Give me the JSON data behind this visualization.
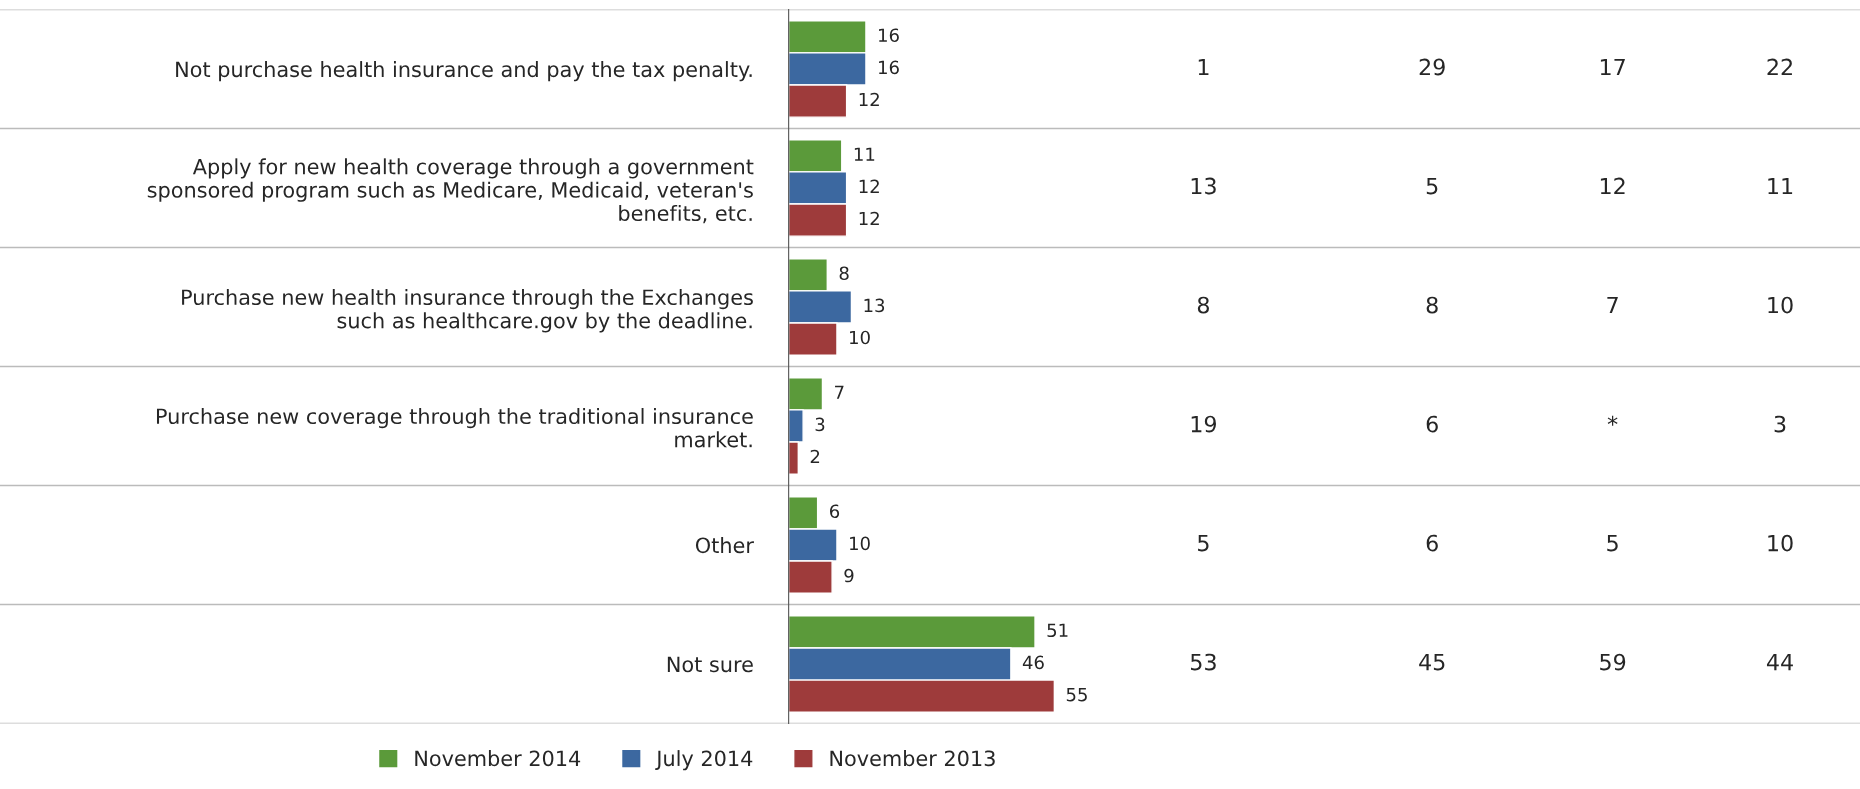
{
  "chart_data": [
    {
      "type": "bar",
      "orientation": "horizontal",
      "data_labels": true,
      "tick_labels": "y",
      "legend": "bottom",
      "grid": false,
      "categories": [
        "Not purchase health insurance and pay the tax penalty.",
        "Apply for new health coverage through a government\nsponsored program such as Medicare, Medicaid, veteran's\nbenefits, etc.",
        "Purchase new health insurance through the Exchanges\nsuch as healthcare.gov by the deadline.",
        "Purchase new coverage through the traditional insurance\nmarket.",
        "Other",
        "Not sure"
      ],
      "series": [
        {
          "name": "November 2014",
          "color": "#5b9a3a",
          "values": [
            16,
            11,
            8,
            7,
            6,
            51
          ]
        },
        {
          "name": "July 2014",
          "color": "#3c68a0",
          "values": [
            16,
            12,
            13,
            3,
            10,
            46
          ]
        },
        {
          "name": "November 2013",
          "color": "#9e3b3b",
          "values": [
            12,
            12,
            10,
            2,
            9,
            55
          ]
        }
      ]
    },
    {
      "type": "other",
      "annotations": [
        "1",
        "29",
        "17",
        "22",
        "13",
        "5",
        "12",
        "11",
        "8",
        "8",
        "7",
        "10",
        "19",
        "6",
        "*",
        "3",
        "5",
        "6",
        "5",
        "10",
        "53",
        "45",
        "59",
        "44"
      ]
    }
  ]
}
